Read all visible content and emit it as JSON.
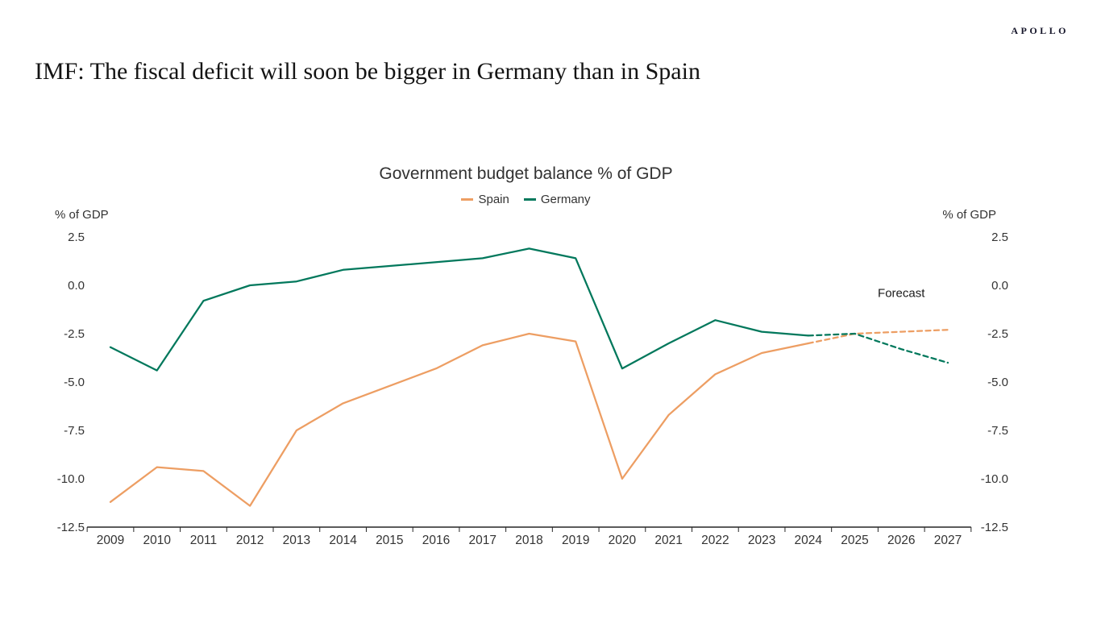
{
  "brand": {
    "logo_text": "APOLLO"
  },
  "header": {
    "title": "IMF: The fiscal deficit will soon be bigger in Germany than in Spain"
  },
  "chart_data": {
    "type": "line",
    "title": "Government budget balance % of GDP",
    "ylabel_left": "% of GDP",
    "ylabel_right": "% of GDP",
    "ylim": [
      -12.5,
      2.5
    ],
    "yticks": [
      2.5,
      0.0,
      -2.5,
      -5.0,
      -7.5,
      -10.0,
      -12.5
    ],
    "grid": false,
    "legend_position": "top",
    "x": [
      2009,
      2010,
      2011,
      2012,
      2013,
      2014,
      2015,
      2016,
      2017,
      2018,
      2019,
      2020,
      2021,
      2022,
      2023,
      2024,
      2025,
      2026,
      2027
    ],
    "series": [
      {
        "name": "Spain",
        "color": "#ED9E63",
        "values": [
          -11.2,
          -9.4,
          -9.6,
          -11.4,
          -7.5,
          -6.1,
          -5.2,
          -4.3,
          -3.1,
          -2.5,
          -2.9,
          -10.0,
          -6.7,
          -4.6,
          -3.5,
          -3.0,
          -2.5,
          -2.4,
          -2.3
        ]
      },
      {
        "name": "Germany",
        "color": "#02785C",
        "values": [
          -3.2,
          -4.4,
          -0.8,
          0.0,
          0.2,
          0.8,
          1.0,
          1.2,
          1.4,
          1.9,
          1.4,
          -4.3,
          -3.0,
          -1.8,
          -2.4,
          -2.6,
          -2.5,
          -3.3,
          -4.0
        ]
      }
    ],
    "forecast_start_year": 2024,
    "annotation": {
      "label": "Forecast",
      "x": 2026,
      "y": -0.6
    },
    "axis_color": "#262626",
    "label_color": "#333333"
  }
}
